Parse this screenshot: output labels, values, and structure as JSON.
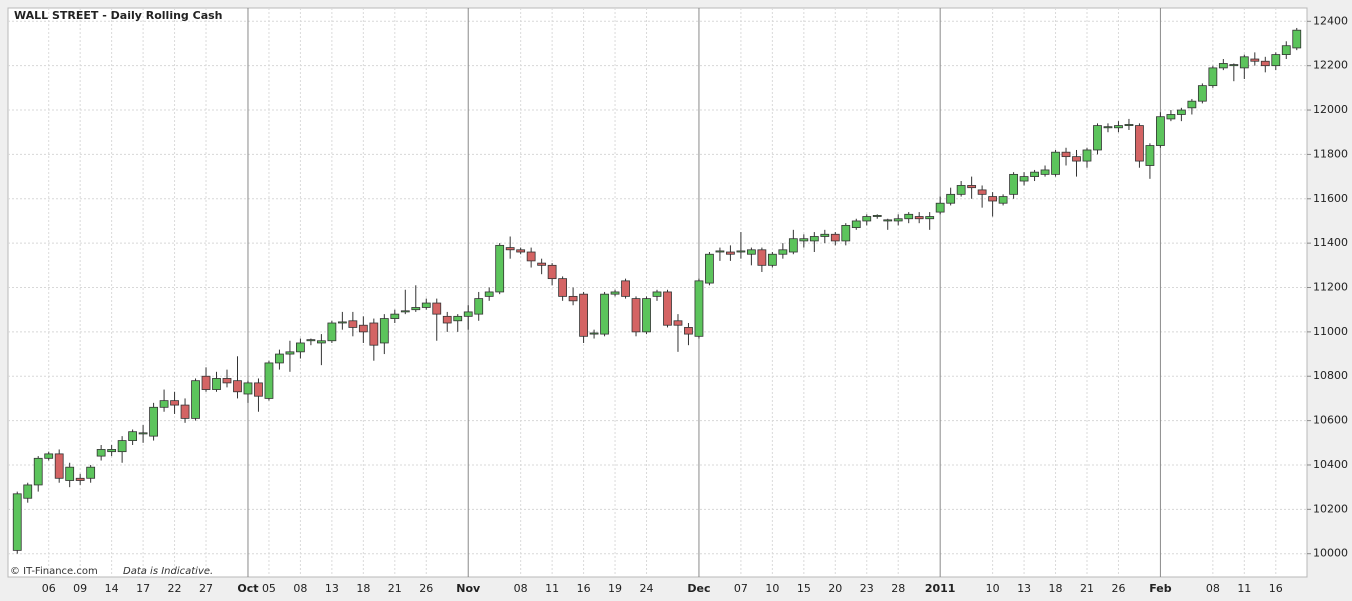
{
  "chart_data": {
    "type": "candlestick",
    "title": "WALL STREET - Daily Rolling Cash",
    "footer": "© IT-Finance.com",
    "note": "Data is Indicative.",
    "up_color": "#5cc45c",
    "down_color": "#d46464",
    "grid": true,
    "ylim": [
      9895,
      12460
    ],
    "yticks": [
      10000,
      10200,
      10400,
      10600,
      10800,
      11000,
      11200,
      11400,
      11600,
      11800,
      12000,
      12200,
      12400
    ],
    "categories": [
      null,
      null,
      null,
      "06",
      null,
      null,
      "09",
      null,
      null,
      "14",
      null,
      null,
      "17",
      null,
      null,
      "22",
      null,
      null,
      "27",
      null,
      null,
      null,
      "Oct",
      null,
      "05",
      null,
      null,
      "08",
      null,
      null,
      "13",
      null,
      null,
      "18",
      null,
      null,
      "21",
      null,
      null,
      "26",
      null,
      null,
      null,
      "Nov",
      null,
      null,
      null,
      null,
      "08",
      null,
      null,
      "11",
      null,
      null,
      "16",
      null,
      null,
      "19",
      null,
      null,
      "24",
      null,
      null,
      null,
      null,
      "Dec",
      null,
      null,
      null,
      "07",
      null,
      null,
      "10",
      null,
      null,
      "15",
      null,
      null,
      "20",
      null,
      null,
      "23",
      null,
      null,
      "28",
      null,
      null,
      null,
      "2011",
      null,
      null,
      null,
      null,
      "10",
      null,
      null,
      "13",
      null,
      null,
      "18",
      null,
      null,
      "21",
      null,
      null,
      "26",
      null,
      null,
      null,
      "Feb",
      null,
      null,
      null,
      null,
      "08",
      null,
      null,
      "11",
      null,
      null,
      "16",
      null,
      null
    ],
    "open": [
      10015,
      10250,
      10310,
      10430,
      10450,
      10330,
      10340,
      10340,
      10440,
      10460,
      10460,
      10510,
      10540,
      10530,
      10660,
      10690,
      10670,
      10610,
      10800,
      10740,
      10790,
      10780,
      10720,
      10770,
      10700,
      10860,
      10900,
      10910,
      10960,
      10950,
      10960,
      11040,
      11050,
      11030,
      11040,
      10950,
      11060,
      11090,
      11100,
      11110,
      11130,
      11070,
      11050,
      11070,
      11080,
      11160,
      11180,
      11380,
      11370,
      11360,
      11310,
      11300,
      11240,
      11160,
      11170,
      10990,
      10990,
      11170,
      11230,
      11150,
      11000,
      11160,
      11180,
      11050,
      11020,
      10980,
      11220,
      11360,
      11360,
      11360,
      11350,
      11370,
      11300,
      11350,
      11360,
      11410,
      11410,
      11430,
      11440,
      11410,
      11470,
      11500,
      11520,
      11500,
      11500,
      11510,
      11520,
      11510,
      11540,
      11580,
      11620,
      11660,
      11640,
      11610,
      11580,
      11620,
      11680,
      11700,
      11710,
      11710,
      11810,
      11790,
      11770,
      11820,
      11920,
      11920,
      11930,
      11930,
      11750,
      11840,
      11960,
      11980,
      12010,
      12040,
      12110,
      12190,
      12200,
      12190,
      12230,
      12220,
      12200,
      12250,
      12280
    ],
    "high": [
      10280,
      10320,
      10440,
      10460,
      10470,
      10410,
      10360,
      10400,
      10490,
      10490,
      10530,
      10560,
      10580,
      10680,
      10740,
      10730,
      10700,
      10790,
      10840,
      10820,
      10830,
      10890,
      10780,
      10790,
      10870,
      10920,
      10960,
      10970,
      10970,
      10990,
      11050,
      11090,
      11090,
      11070,
      11060,
      11080,
      11100,
      11190,
      11210,
      11150,
      11150,
      11090,
      11080,
      11120,
      11180,
      11200,
      11400,
      11430,
      11380,
      11380,
      11330,
      11310,
      11250,
      11200,
      11180,
      11010,
      11180,
      11190,
      11240,
      11160,
      11160,
      11190,
      11190,
      11080,
      11040,
      11240,
      11360,
      11380,
      11390,
      11450,
      11380,
      11380,
      11360,
      11400,
      11460,
      11440,
      11450,
      11460,
      11450,
      11490,
      11510,
      11530,
      11530,
      11510,
      11530,
      11540,
      11540,
      11540,
      11610,
      11650,
      11680,
      11700,
      11660,
      11630,
      11620,
      11720,
      11720,
      11730,
      11750,
      11820,
      11830,
      11820,
      11830,
      11940,
      11940,
      11950,
      11960,
      11940,
      11850,
      11990,
      12000,
      12010,
      12050,
      12120,
      12200,
      12230,
      12210,
      12250,
      12260,
      12240,
      12260,
      12310,
      12370
    ],
    "low": [
      10000,
      10230,
      10280,
      10420,
      10320,
      10300,
      10310,
      10320,
      10420,
      10440,
      10410,
      10490,
      10500,
      10510,
      10640,
      10630,
      10590,
      10600,
      10730,
      10730,
      10750,
      10700,
      10680,
      10640,
      10690,
      10830,
      10820,
      10880,
      10940,
      10850,
      10950,
      11010,
      10980,
      10950,
      10870,
      10900,
      11040,
      11080,
      11090,
      11100,
      10960,
      11000,
      11000,
      11010,
      11050,
      11140,
      11170,
      11330,
      11350,
      11290,
      11260,
      11210,
      11140,
      11120,
      10950,
      10970,
      10980,
      11160,
      11150,
      10980,
      10990,
      11140,
      11020,
      10910,
      10940,
      10970,
      11210,
      11320,
      11320,
      11330,
      11300,
      11270,
      11290,
      11330,
      11350,
      11380,
      11360,
      11400,
      11390,
      11390,
      11460,
      11480,
      11510,
      11460,
      11480,
      11490,
      11490,
      11460,
      11530,
      11570,
      11610,
      11600,
      11560,
      11520,
      11570,
      11600,
      11660,
      11680,
      11700,
      11700,
      11750,
      11700,
      11740,
      11800,
      11900,
      11900,
      11910,
      11740,
      11690,
      11830,
      11950,
      11950,
      11980,
      12030,
      12100,
      12180,
      12130,
      12140,
      12200,
      12170,
      12180,
      12230,
      12270
    ],
    "close": [
      10270,
      10310,
      10430,
      10450,
      10340,
      10390,
      10330,
      10390,
      10470,
      10470,
      10510,
      10550,
      10545,
      10660,
      10690,
      10670,
      10610,
      10780,
      10740,
      10790,
      10770,
      10730,
      10770,
      10710,
      10860,
      10900,
      10910,
      10950,
      10965,
      10960,
      11040,
      11045,
      11020,
      11000,
      10940,
      11060,
      11080,
      11095,
      11110,
      11130,
      11080,
      11040,
      11070,
      11090,
      11150,
      11180,
      11390,
      11370,
      11360,
      11320,
      11300,
      11240,
      11160,
      11140,
      10980,
      10995,
      11170,
      11180,
      11160,
      11000,
      11150,
      11180,
      11030,
      11030,
      10990,
      11230,
      11350,
      11365,
      11350,
      11365,
      11370,
      11300,
      11350,
      11370,
      11420,
      11420,
      11430,
      11440,
      11410,
      11480,
      11500,
      11520,
      11525,
      11505,
      11510,
      11530,
      11510,
      11520,
      11580,
      11620,
      11660,
      11650,
      11620,
      11590,
      11610,
      11710,
      11700,
      11720,
      11730,
      11810,
      11790,
      11770,
      11820,
      11930,
      11925,
      11930,
      11935,
      11770,
      11840,
      11970,
      11980,
      12000,
      12040,
      12110,
      12190,
      12210,
      12205,
      12240,
      12220,
      12200,
      12250,
      12290,
      12360
    ]
  }
}
